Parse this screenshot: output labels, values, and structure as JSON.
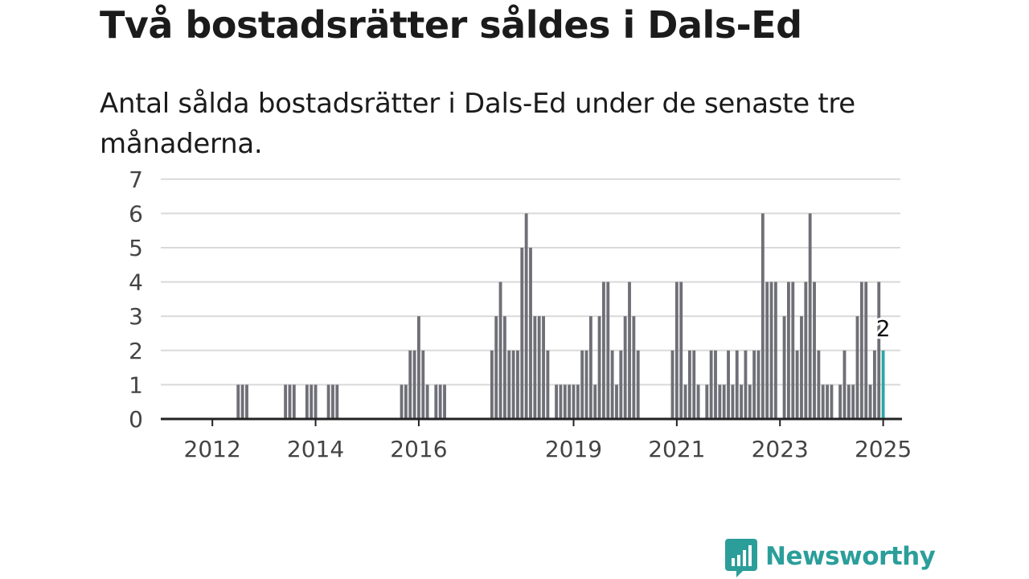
{
  "header": {
    "title": "Två bostadsrätter såldes i Dals-Ed",
    "subtitle": "Antal sålda bostadsrätter i Dals-Ed under de senaste tre månaderna."
  },
  "brand": {
    "name": "Newsworthy",
    "color": "#2b9e9a",
    "logo_icon": "bar-chart-speech-bubble-icon"
  },
  "colors": {
    "bar": "#6f6f77",
    "highlight": "#2ca6a4",
    "grid": "#d9d9d9",
    "axis": "#222222"
  },
  "chart_data": {
    "type": "bar",
    "title": "",
    "xlabel": "",
    "ylabel": "",
    "ylim": [
      0,
      7
    ],
    "yticks": [
      0,
      1,
      2,
      3,
      4,
      5,
      6,
      7
    ],
    "xlim": [
      "2011-01",
      "2025-05"
    ],
    "xticks": [
      {
        "label": "2012",
        "date": "2012-01"
      },
      {
        "label": "2014",
        "date": "2014-01"
      },
      {
        "label": "2016",
        "date": "2016-01"
      },
      {
        "label": "2019",
        "date": "2019-01"
      },
      {
        "label": "2021",
        "date": "2021-01"
      },
      {
        "label": "2023",
        "date": "2023-01"
      },
      {
        "label": "2025",
        "date": "2025-01"
      }
    ],
    "grid": true,
    "highlight": {
      "date": "2025-01",
      "value": 2,
      "label": "2"
    },
    "bars": [
      {
        "date": "2012-07",
        "value": 1
      },
      {
        "date": "2012-08",
        "value": 1
      },
      {
        "date": "2012-09",
        "value": 1
      },
      {
        "date": "2013-06",
        "value": 1
      },
      {
        "date": "2013-07",
        "value": 1
      },
      {
        "date": "2013-08",
        "value": 1
      },
      {
        "date": "2013-11",
        "value": 1
      },
      {
        "date": "2013-12",
        "value": 1
      },
      {
        "date": "2014-01",
        "value": 1
      },
      {
        "date": "2014-04",
        "value": 1
      },
      {
        "date": "2014-05",
        "value": 1
      },
      {
        "date": "2014-06",
        "value": 1
      },
      {
        "date": "2015-09",
        "value": 1
      },
      {
        "date": "2015-10",
        "value": 1
      },
      {
        "date": "2015-11",
        "value": 2
      },
      {
        "date": "2015-12",
        "value": 2
      },
      {
        "date": "2016-01",
        "value": 3
      },
      {
        "date": "2016-02",
        "value": 2
      },
      {
        "date": "2016-03",
        "value": 1
      },
      {
        "date": "2016-05",
        "value": 1
      },
      {
        "date": "2016-06",
        "value": 1
      },
      {
        "date": "2016-07",
        "value": 1
      },
      {
        "date": "2017-06",
        "value": 2
      },
      {
        "date": "2017-07",
        "value": 3
      },
      {
        "date": "2017-08",
        "value": 4
      },
      {
        "date": "2017-09",
        "value": 3
      },
      {
        "date": "2017-10",
        "value": 2
      },
      {
        "date": "2017-11",
        "value": 2
      },
      {
        "date": "2017-12",
        "value": 2
      },
      {
        "date": "2018-01",
        "value": 5
      },
      {
        "date": "2018-02",
        "value": 6
      },
      {
        "date": "2018-03",
        "value": 5
      },
      {
        "date": "2018-04",
        "value": 3
      },
      {
        "date": "2018-05",
        "value": 3
      },
      {
        "date": "2018-06",
        "value": 3
      },
      {
        "date": "2018-07",
        "value": 2
      },
      {
        "date": "2018-09",
        "value": 1
      },
      {
        "date": "2018-10",
        "value": 1
      },
      {
        "date": "2018-11",
        "value": 1
      },
      {
        "date": "2018-12",
        "value": 1
      },
      {
        "date": "2019-01",
        "value": 1
      },
      {
        "date": "2019-02",
        "value": 1
      },
      {
        "date": "2019-03",
        "value": 2
      },
      {
        "date": "2019-04",
        "value": 2
      },
      {
        "date": "2019-05",
        "value": 3
      },
      {
        "date": "2019-06",
        "value": 1
      },
      {
        "date": "2019-07",
        "value": 3
      },
      {
        "date": "2019-08",
        "value": 4
      },
      {
        "date": "2019-09",
        "value": 4
      },
      {
        "date": "2019-10",
        "value": 2
      },
      {
        "date": "2019-11",
        "value": 1
      },
      {
        "date": "2019-12",
        "value": 2
      },
      {
        "date": "2020-01",
        "value": 3
      },
      {
        "date": "2020-02",
        "value": 4
      },
      {
        "date": "2020-03",
        "value": 3
      },
      {
        "date": "2020-04",
        "value": 2
      },
      {
        "date": "2020-12",
        "value": 2
      },
      {
        "date": "2021-01",
        "value": 4
      },
      {
        "date": "2021-02",
        "value": 4
      },
      {
        "date": "2021-03",
        "value": 1
      },
      {
        "date": "2021-04",
        "value": 2
      },
      {
        "date": "2021-05",
        "value": 2
      },
      {
        "date": "2021-06",
        "value": 1
      },
      {
        "date": "2021-08",
        "value": 1
      },
      {
        "date": "2021-09",
        "value": 2
      },
      {
        "date": "2021-10",
        "value": 2
      },
      {
        "date": "2021-11",
        "value": 1
      },
      {
        "date": "2021-12",
        "value": 1
      },
      {
        "date": "2022-01",
        "value": 2
      },
      {
        "date": "2022-02",
        "value": 1
      },
      {
        "date": "2022-03",
        "value": 2
      },
      {
        "date": "2022-04",
        "value": 1
      },
      {
        "date": "2022-05",
        "value": 2
      },
      {
        "date": "2022-06",
        "value": 1
      },
      {
        "date": "2022-07",
        "value": 2
      },
      {
        "date": "2022-08",
        "value": 2
      },
      {
        "date": "2022-09",
        "value": 6
      },
      {
        "date": "2022-10",
        "value": 4
      },
      {
        "date": "2022-11",
        "value": 4
      },
      {
        "date": "2022-12",
        "value": 4
      },
      {
        "date": "2023-02",
        "value": 3
      },
      {
        "date": "2023-03",
        "value": 4
      },
      {
        "date": "2023-04",
        "value": 4
      },
      {
        "date": "2023-05",
        "value": 2
      },
      {
        "date": "2023-06",
        "value": 3
      },
      {
        "date": "2023-07",
        "value": 4
      },
      {
        "date": "2023-08",
        "value": 6
      },
      {
        "date": "2023-09",
        "value": 4
      },
      {
        "date": "2023-10",
        "value": 2
      },
      {
        "date": "2023-11",
        "value": 1
      },
      {
        "date": "2023-12",
        "value": 1
      },
      {
        "date": "2024-01",
        "value": 1
      },
      {
        "date": "2024-03",
        "value": 1
      },
      {
        "date": "2024-04",
        "value": 2
      },
      {
        "date": "2024-05",
        "value": 1
      },
      {
        "date": "2024-06",
        "value": 1
      },
      {
        "date": "2024-07",
        "value": 3
      },
      {
        "date": "2024-08",
        "value": 4
      },
      {
        "date": "2024-09",
        "value": 4
      },
      {
        "date": "2024-10",
        "value": 1
      },
      {
        "date": "2024-11",
        "value": 2
      },
      {
        "date": "2024-12",
        "value": 4
      },
      {
        "date": "2025-01",
        "value": 2
      }
    ]
  }
}
